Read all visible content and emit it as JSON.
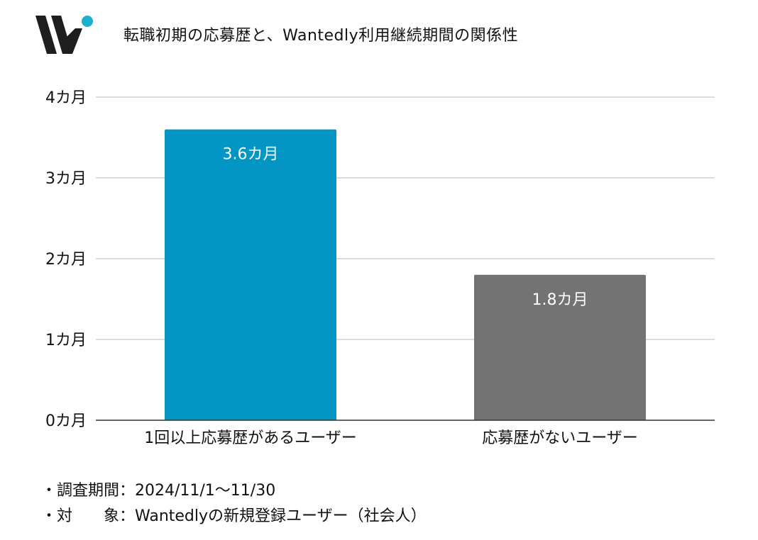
{
  "header": {
    "title": "転職初期の応募歴と、Wantedly利用継続期間の関係性",
    "logo_colors": {
      "mark": "#1e1e1e",
      "dot": "#1cb0cf"
    }
  },
  "chart_data": {
    "type": "bar",
    "title": "転職初期の応募歴と、Wantedly利用継続期間の関係性",
    "categories": [
      "1回以上応募歴があるユーザー",
      "応募歴がないユーザー"
    ],
    "values": [
      3.6,
      1.8
    ],
    "data_labels": [
      "3.6カ月",
      "1.8カ月"
    ],
    "colors": [
      "#0396c5",
      "#737373"
    ],
    "ylim": [
      0,
      4
    ],
    "yticks": [
      0,
      1,
      2,
      3,
      4
    ],
    "ytick_labels": [
      "0カ月",
      "1カ月",
      "2カ月",
      "3カ月",
      "4カ月"
    ],
    "xlabel": "",
    "ylabel": "",
    "grid": true
  },
  "notes": [
    "・調査期間：2024/11/1〜11/30",
    "・対　　象：Wantedlyの新規登録ユーザー（社会人）"
  ]
}
